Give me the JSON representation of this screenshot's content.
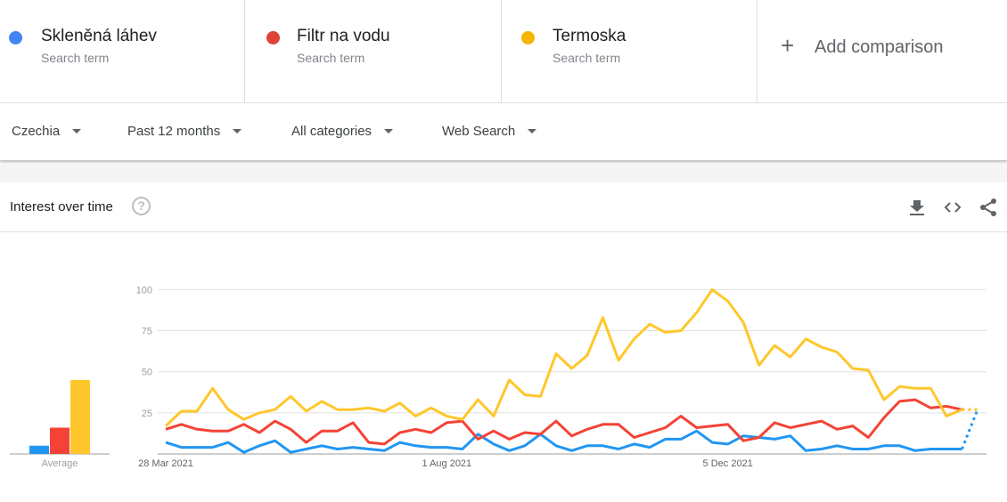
{
  "terms": [
    {
      "name": "Skleněná láhev",
      "subtitle": "Search term",
      "color": "#4285f4"
    },
    {
      "name": "Filtr na vodu",
      "subtitle": "Search term",
      "color": "#db4437"
    },
    {
      "name": "Termoska",
      "subtitle": "Search term",
      "color": "#f4b400"
    }
  ],
  "add_comparison": {
    "icon": "+",
    "label": "Add comparison"
  },
  "filters": {
    "region": "Czechia",
    "time_range": "Past 12 months",
    "category": "All categories",
    "search_type": "Web Search"
  },
  "card": {
    "title": "Interest over time",
    "help_icon": "?",
    "actions": [
      "download-icon",
      "embed-icon",
      "share-icon"
    ]
  },
  "chart_data": [
    {
      "type": "bar",
      "title": "",
      "categories": [
        "Average"
      ],
      "xlabel": "Average",
      "series": [
        {
          "name": "Skleněná láhev",
          "color": "#2196f3",
          "values": [
            5
          ]
        },
        {
          "name": "Filtr na vodu",
          "color": "#f44336",
          "values": [
            16
          ]
        },
        {
          "name": "Termoska",
          "color": "#ffc72c",
          "values": [
            45
          ]
        }
      ],
      "ylim": [
        0,
        100
      ]
    },
    {
      "type": "line",
      "title": "Interest over time",
      "xlabel": "",
      "ylabel": "",
      "ylim": [
        0,
        100
      ],
      "yticks": [
        25,
        50,
        75,
        100
      ],
      "grid": true,
      "x_tick_labels": [
        {
          "index": 0,
          "label": "28 Mar 2021"
        },
        {
          "index": 18,
          "label": "1 Aug 2021"
        },
        {
          "index": 36,
          "label": "5 Dec 2021"
        }
      ],
      "x_points": 53,
      "partial_last_point": true,
      "series": [
        {
          "name": "Skleněná láhev",
          "color": "#2196f3",
          "values": [
            7,
            4,
            4,
            4,
            7,
            1,
            5,
            8,
            1,
            3,
            5,
            3,
            4,
            3,
            2,
            7,
            5,
            4,
            4,
            3,
            12,
            6,
            2,
            5,
            12,
            5,
            2,
            5,
            5,
            3,
            6,
            4,
            9,
            9,
            14,
            7,
            6,
            11,
            10,
            9,
            11,
            2,
            3,
            5,
            3,
            3,
            5,
            5,
            2,
            3,
            3,
            3,
            27
          ]
        },
        {
          "name": "Filtr na vodu",
          "color": "#f44336",
          "values": [
            15,
            18,
            15,
            14,
            14,
            18,
            13,
            20,
            15,
            7,
            14,
            14,
            19,
            7,
            6,
            13,
            15,
            13,
            19,
            20,
            9,
            14,
            9,
            13,
            12,
            20,
            11,
            15,
            18,
            18,
            10,
            13,
            16,
            23,
            16,
            17,
            18,
            8,
            10,
            19,
            16,
            18,
            20,
            15,
            17,
            10,
            22,
            32,
            33,
            28,
            29,
            27,
            27
          ]
        },
        {
          "name": "Termoska",
          "color": "#ffc72c",
          "values": [
            17,
            26,
            26,
            40,
            27,
            21,
            25,
            27,
            35,
            26,
            32,
            27,
            27,
            28,
            26,
            31,
            23,
            28,
            23,
            21,
            33,
            23,
            45,
            36,
            35,
            61,
            52,
            60,
            83,
            57,
            70,
            79,
            74,
            75,
            86,
            100,
            93,
            80,
            54,
            66,
            59,
            70,
            65,
            62,
            52,
            51,
            33,
            41,
            40,
            40,
            23,
            27,
            27
          ]
        }
      ]
    }
  ]
}
